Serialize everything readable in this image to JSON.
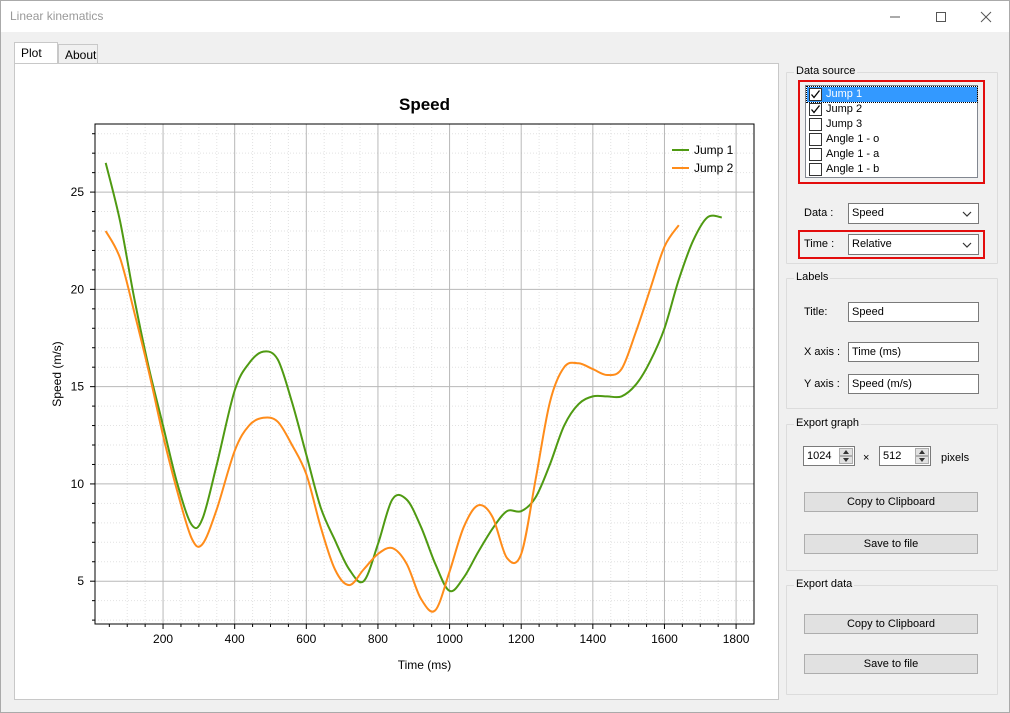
{
  "window": {
    "title": "Linear kinematics",
    "minimize_icon": "minimize-icon",
    "maximize_icon": "maximize-icon",
    "close_icon": "close-icon"
  },
  "tabs": [
    {
      "label": "Plot",
      "active": true
    },
    {
      "label": "About",
      "active": false
    }
  ],
  "data_source": {
    "group_label": "Data source",
    "items": [
      {
        "label": "Jump 1",
        "checked": true,
        "selected": true
      },
      {
        "label": "Jump 2",
        "checked": true,
        "selected": false
      },
      {
        "label": "Jump 3",
        "checked": false,
        "selected": false
      },
      {
        "label": "Angle 1 - o",
        "checked": false,
        "selected": false
      },
      {
        "label": "Angle 1 - a",
        "checked": false,
        "selected": false
      },
      {
        "label": "Angle 1 - b",
        "checked": false,
        "selected": false
      }
    ],
    "data_label": "Data :",
    "data_value": "Speed",
    "time_label": "Time :",
    "time_value": "Relative"
  },
  "labels": {
    "group_label": "Labels",
    "title_label": "Title:",
    "title_value": "Speed",
    "xaxis_label": "X axis :",
    "xaxis_value": "Time (ms)",
    "yaxis_label": "Y axis :",
    "yaxis_value": "Speed (m/s)"
  },
  "export_graph": {
    "group_label": "Export graph",
    "width": "1024",
    "times": "×",
    "height": "512",
    "unit": "pixels",
    "copy_label": "Copy to Clipboard",
    "save_label": "Save to file"
  },
  "export_data": {
    "group_label": "Export data",
    "copy_label": "Copy to Clipboard",
    "save_label": "Save to file"
  },
  "colors": {
    "series1": "#4f9a12",
    "series2": "#ff8c1a",
    "highlight": "#e30d0d"
  },
  "chart_data": {
    "type": "line",
    "title": "Speed",
    "xlabel": "Time (ms)",
    "ylabel": "Speed (m/s)",
    "xlim": [
      10,
      1850
    ],
    "ylim": [
      2.8,
      28.5
    ],
    "xticks": [
      200,
      400,
      600,
      800,
      1000,
      1200,
      1400,
      1600,
      1800
    ],
    "yticks": [
      5,
      10,
      15,
      20,
      25
    ],
    "grid": true,
    "legend_position": "top-right",
    "series": [
      {
        "name": "Jump 1",
        "color": "#4f9a12",
        "x": [
          40,
          80,
          120,
          160,
          200,
          240,
          280,
          310,
          350,
          400,
          440,
          480,
          520,
          560,
          600,
          640,
          680,
          720,
          760,
          800,
          840,
          880,
          920,
          960,
          1000,
          1040,
          1080,
          1120,
          1160,
          1200,
          1240,
          1280,
          1320,
          1360,
          1400,
          1440,
          1480,
          1520,
          1560,
          1600,
          1640,
          1680,
          1720,
          1760
        ],
        "y": [
          26.5,
          23.5,
          19.5,
          16,
          13,
          10,
          7.9,
          8.2,
          11,
          14.8,
          16.2,
          16.8,
          16.4,
          14.2,
          11.5,
          8.8,
          7.1,
          5.6,
          5.0,
          6.9,
          9.2,
          9.2,
          7.8,
          5.9,
          4.5,
          5.2,
          6.5,
          7.7,
          8.6,
          8.6,
          9.3,
          11.0,
          13.0,
          14.1,
          14.5,
          14.5,
          14.5,
          15.1,
          16.3,
          18.0,
          20.5,
          22.5,
          23.7,
          23.7
        ]
      },
      {
        "name": "Jump 2",
        "color": "#ff8c1a",
        "x": [
          40,
          80,
          120,
          160,
          200,
          240,
          280,
          310,
          350,
          400,
          440,
          480,
          520,
          560,
          600,
          640,
          680,
          720,
          760,
          800,
          840,
          880,
          920,
          960,
          1000,
          1040,
          1080,
          1120,
          1160,
          1200,
          1240,
          1280,
          1320,
          1360,
          1400,
          1440,
          1480,
          1520,
          1560,
          1600,
          1640
        ],
        "y": [
          23.0,
          21.6,
          18.8,
          15.8,
          12.5,
          9.6,
          7.2,
          6.9,
          8.7,
          11.7,
          13.0,
          13.4,
          13.2,
          12.0,
          10.5,
          7.8,
          5.6,
          4.8,
          5.6,
          6.4,
          6.7,
          5.9,
          4.1,
          3.5,
          5.5,
          7.8,
          8.9,
          8.3,
          6.2,
          6.4,
          10.2,
          14.2,
          16.0,
          16.2,
          15.9,
          15.6,
          15.9,
          17.8,
          20.0,
          22.2,
          23.3
        ]
      }
    ]
  }
}
